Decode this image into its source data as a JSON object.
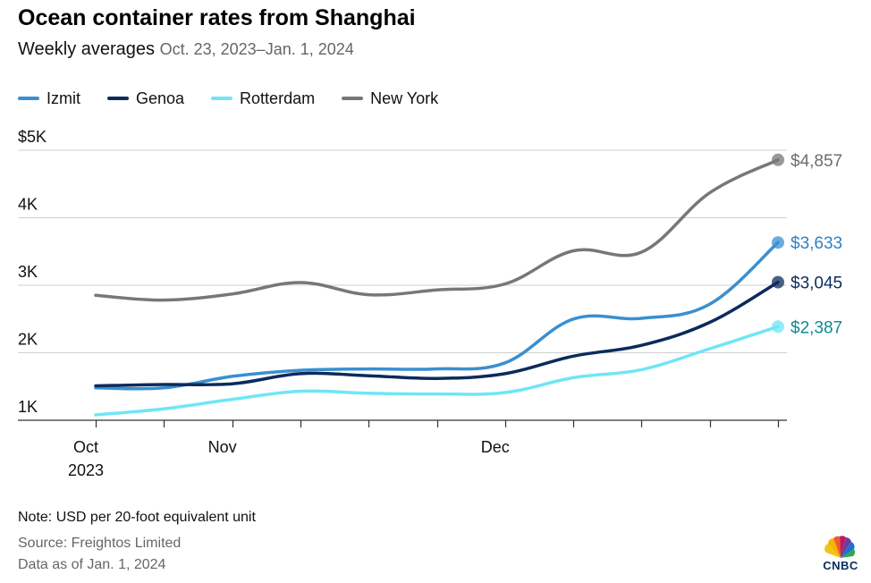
{
  "title": "Ocean container rates from Shanghai",
  "subtitle": {
    "main": "Weekly averages",
    "range": "Oct. 23, 2023–Jan. 1, 2024"
  },
  "footer": {
    "note": "Note: USD per 20-foot equivalent unit",
    "source": "Source: Freightos Limited",
    "data_as_of": "Data as of Jan. 1, 2024"
  },
  "logo": {
    "text": "CNBC",
    "icon": "peacock-icon"
  },
  "chart_data": {
    "type": "line",
    "title": "Ocean container rates from Shanghai",
    "subtitle": "Weekly averages Oct. 23, 2023–Jan. 1, 2024",
    "xlabel": "",
    "ylabel": "USD per 20-foot equivalent unit",
    "x": [
      "2023-10-23",
      "2023-10-30",
      "2023-11-06",
      "2023-11-13",
      "2023-11-20",
      "2023-11-27",
      "2023-12-04",
      "2023-12-11",
      "2023-12-18",
      "2023-12-25",
      "2024-01-01"
    ],
    "x_tick_labels": [
      {
        "index": 0,
        "lines": [
          "Oct",
          "2023"
        ]
      },
      {
        "index": 2,
        "lines": [
          "Nov"
        ]
      },
      {
        "index": 6,
        "lines": [
          "Dec"
        ]
      }
    ],
    "ylim": [
      1000,
      5000
    ],
    "y_ticks": [
      1000,
      2000,
      3000,
      4000,
      5000
    ],
    "y_tick_labels": [
      "1K",
      "2K",
      "3K",
      "4K",
      "$5K"
    ],
    "grid": true,
    "legend_position": "top-left",
    "series": [
      {
        "name": "Izmit",
        "color": "#3a8fd0",
        "values": [
          1480,
          1480,
          1650,
          1740,
          1760,
          1760,
          1850,
          2500,
          2510,
          2720,
          3633
        ],
        "end_label": "$3,633",
        "label_color": "#2e82c3"
      },
      {
        "name": "Genoa",
        "color": "#0c2b5c",
        "values": [
          1510,
          1530,
          1540,
          1690,
          1660,
          1620,
          1690,
          1950,
          2110,
          2450,
          3045
        ],
        "end_label": "$3,045",
        "label_color": "#0c2b5c"
      },
      {
        "name": "Rotterdam",
        "color": "#6fe6f5",
        "values": [
          1080,
          1170,
          1310,
          1430,
          1400,
          1390,
          1410,
          1630,
          1750,
          2060,
          2387
        ],
        "end_label": "$2,387",
        "label_color": "#0f8a8f"
      },
      {
        "name": "New York",
        "color": "#777777",
        "values": [
          2850,
          2780,
          2870,
          3040,
          2860,
          2930,
          3020,
          3510,
          3490,
          4370,
          4857
        ],
        "end_label": "$4,857",
        "label_color": "#6e6e6e"
      }
    ]
  }
}
